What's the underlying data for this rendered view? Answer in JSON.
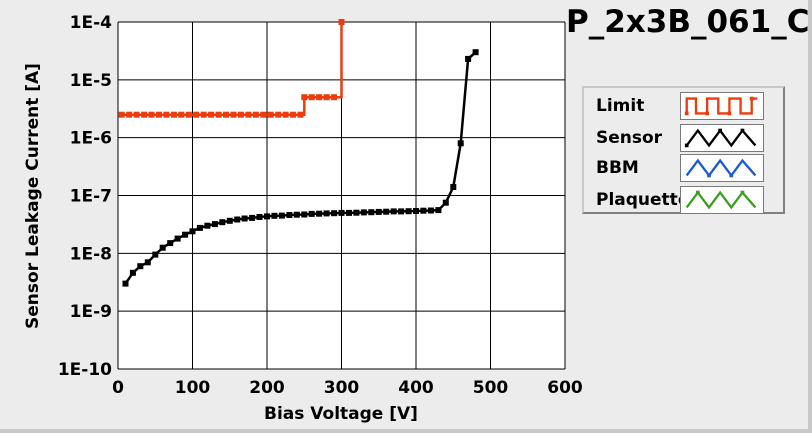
{
  "chart_data": {
    "type": "line",
    "title": "P_2x3B_061_C",
    "xlabel": "Bias Voltage [V]",
    "ylabel": "Sensor Leakage Current [A]",
    "xlim": [
      0,
      600
    ],
    "ylim": [
      1e-10,
      0.0001
    ],
    "y_scale": "log",
    "grid": true,
    "x_ticks": [
      {
        "value": 0,
        "label": "0"
      },
      {
        "value": 100,
        "label": "100"
      },
      {
        "value": 200,
        "label": "200"
      },
      {
        "value": 300,
        "label": "300"
      },
      {
        "value": 400,
        "label": "400"
      },
      {
        "value": 500,
        "label": "500"
      },
      {
        "value": 600,
        "label": "600"
      }
    ],
    "y_ticks": [
      {
        "value": 0.0001,
        "label": "1E-4"
      },
      {
        "value": 1e-05,
        "label": "1E-5"
      },
      {
        "value": 1e-06,
        "label": "1E-6"
      },
      {
        "value": 1e-07,
        "label": "1E-7"
      },
      {
        "value": 1e-08,
        "label": "1E-8"
      },
      {
        "value": 1e-09,
        "label": "1E-9"
      },
      {
        "value": 1e-10,
        "label": "1E-10"
      }
    ],
    "legend_position": "right",
    "series": [
      {
        "name": "Limit",
        "color": "#ee3a0c",
        "step": true,
        "points": [
          [
            5,
            2.5e-06
          ],
          [
            15,
            2.5e-06
          ],
          [
            25,
            2.5e-06
          ],
          [
            35,
            2.5e-06
          ],
          [
            45,
            2.5e-06
          ],
          [
            55,
            2.5e-06
          ],
          [
            65,
            2.5e-06
          ],
          [
            75,
            2.5e-06
          ],
          [
            85,
            2.5e-06
          ],
          [
            95,
            2.5e-06
          ],
          [
            105,
            2.5e-06
          ],
          [
            115,
            2.5e-06
          ],
          [
            125,
            2.5e-06
          ],
          [
            135,
            2.5e-06
          ],
          [
            145,
            2.5e-06
          ],
          [
            155,
            2.5e-06
          ],
          [
            165,
            2.5e-06
          ],
          [
            175,
            2.5e-06
          ],
          [
            185,
            2.5e-06
          ],
          [
            195,
            2.5e-06
          ],
          [
            205,
            2.5e-06
          ],
          [
            215,
            2.5e-06
          ],
          [
            225,
            2.5e-06
          ],
          [
            235,
            2.5e-06
          ],
          [
            245,
            2.5e-06
          ],
          [
            250,
            5e-06
          ],
          [
            260,
            5e-06
          ],
          [
            270,
            5e-06
          ],
          [
            280,
            5e-06
          ],
          [
            290,
            5e-06
          ],
          [
            300,
            0.0001
          ]
        ]
      },
      {
        "name": "Sensor",
        "color": "#000000",
        "step": false,
        "points": [
          [
            10,
            3e-09
          ],
          [
            20,
            4.6e-09
          ],
          [
            30,
            6e-09
          ],
          [
            40,
            7e-09
          ],
          [
            50,
            9.5e-09
          ],
          [
            60,
            1.25e-08
          ],
          [
            70,
            1.5e-08
          ],
          [
            80,
            1.8e-08
          ],
          [
            90,
            2.1e-08
          ],
          [
            100,
            2.4e-08
          ],
          [
            110,
            2.75e-08
          ],
          [
            120,
            3e-08
          ],
          [
            130,
            3.2e-08
          ],
          [
            140,
            3.45e-08
          ],
          [
            150,
            3.65e-08
          ],
          [
            160,
            3.85e-08
          ],
          [
            170,
            4e-08
          ],
          [
            180,
            4.1e-08
          ],
          [
            190,
            4.25e-08
          ],
          [
            200,
            4.35e-08
          ],
          [
            210,
            4.45e-08
          ],
          [
            220,
            4.5e-08
          ],
          [
            230,
            4.6e-08
          ],
          [
            240,
            4.65e-08
          ],
          [
            250,
            4.7e-08
          ],
          [
            260,
            4.8e-08
          ],
          [
            270,
            4.85e-08
          ],
          [
            280,
            4.9e-08
          ],
          [
            290,
            4.95e-08
          ],
          [
            300,
            5e-08
          ],
          [
            310,
            5e-08
          ],
          [
            320,
            5.05e-08
          ],
          [
            330,
            5.1e-08
          ],
          [
            340,
            5.15e-08
          ],
          [
            350,
            5.2e-08
          ],
          [
            360,
            5.25e-08
          ],
          [
            370,
            5.3e-08
          ],
          [
            380,
            5.3e-08
          ],
          [
            390,
            5.35e-08
          ],
          [
            400,
            5.4e-08
          ],
          [
            410,
            5.45e-08
          ],
          [
            420,
            5.5e-08
          ],
          [
            430,
            5.6e-08
          ],
          [
            440,
            7.5e-08
          ],
          [
            450,
            1.4e-07
          ],
          [
            460,
            8e-07
          ],
          [
            470,
            2.3e-05
          ],
          [
            480,
            3e-05
          ]
        ]
      },
      {
        "name": "BBM",
        "color": "#1a5ad2",
        "step": false,
        "points": []
      },
      {
        "name": "Plaquette",
        "color": "#3aa020",
        "step": false,
        "points": []
      }
    ]
  }
}
